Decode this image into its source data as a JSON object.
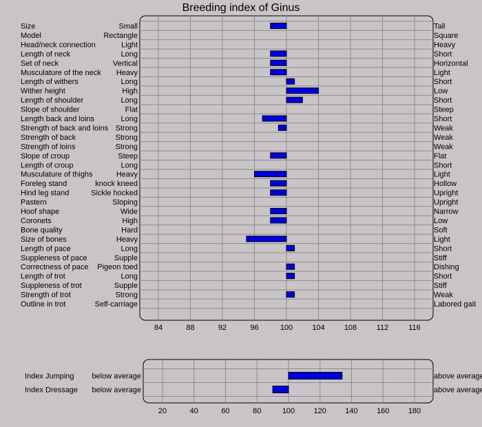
{
  "chart_data": [
    {
      "type": "bar",
      "orientation": "horizontal",
      "title": "Breeding index of Ginus",
      "baseline": 100,
      "xlim": [
        80,
        120
      ],
      "xticks": [
        84,
        88,
        92,
        96,
        100,
        104,
        108,
        112,
        116
      ],
      "grid": true,
      "bar_color": "#0000e0",
      "traits": [
        {
          "trait": "Size",
          "low": "Small",
          "high": "Tall",
          "value": 98
        },
        {
          "trait": "Model",
          "low": "Rectangle",
          "high": "Square",
          "value": null
        },
        {
          "trait": "Head/neck connection",
          "low": "Light",
          "high": "Heavy",
          "value": null
        },
        {
          "trait": "Length of neck",
          "low": "Long",
          "high": "Short",
          "value": 98
        },
        {
          "trait": "Set of neck",
          "low": "Vertical",
          "high": "Horizontal",
          "value": 98
        },
        {
          "trait": "Musculature of the neck",
          "low": "Heavy",
          "high": "Light",
          "value": 98
        },
        {
          "trait": "Length of withers",
          "low": "Long",
          "high": "Short",
          "value": 101
        },
        {
          "trait": "Wither height",
          "low": "High",
          "high": "Low",
          "value": 104
        },
        {
          "trait": "Length of shoulder",
          "low": "Long",
          "high": "Short",
          "value": 102
        },
        {
          "trait": "Slope of shoulder",
          "low": "Flat",
          "high": "Steep",
          "value": null
        },
        {
          "trait": "Length back and loins",
          "low": "Long",
          "high": "Short",
          "value": 97
        },
        {
          "trait": "Strength of back and loins",
          "low": "Strong",
          "high": "Weak",
          "value": 99
        },
        {
          "trait": "Strength of back",
          "low": "Strong",
          "high": "Weak",
          "value": null
        },
        {
          "trait": "Strength of loins",
          "low": "Strong",
          "high": "Weak",
          "value": null
        },
        {
          "trait": "Slope of croup",
          "low": "Steep",
          "high": "Flat",
          "value": 98
        },
        {
          "trait": "Length of croup",
          "low": "Long",
          "high": "Short",
          "value": null
        },
        {
          "trait": "Musculature of thighs",
          "low": "Heavy",
          "high": "Light",
          "value": 96
        },
        {
          "trait": "Foreleg stand",
          "low": "knock kneed",
          "high": "Hollow",
          "value": 98
        },
        {
          "trait": "Hind leg stand",
          "low": "Sickle hocked",
          "high": "Upright",
          "value": 98
        },
        {
          "trait": "Pastern",
          "low": "Sloping",
          "high": "Upright",
          "value": null
        },
        {
          "trait": "Hoof shape",
          "low": "Wide",
          "high": "Narrow",
          "value": 98
        },
        {
          "trait": "Coronets",
          "low": "High",
          "high": "Low",
          "value": 98
        },
        {
          "trait": "Bone quality",
          "low": "Hard",
          "high": "Soft",
          "value": null
        },
        {
          "trait": "Size of bones",
          "low": "Heavy",
          "high": "Light",
          "value": 95
        },
        {
          "trait": "Length of pace",
          "low": "Long",
          "high": "Short",
          "value": 101
        },
        {
          "trait": "Suppleness of pace",
          "low": "Supple",
          "high": "Stiff",
          "value": null
        },
        {
          "trait": "Correctness of pace",
          "low": "Pigeon toed",
          "high": "Dishing",
          "value": 101
        },
        {
          "trait": "Length of trot",
          "low": "Long",
          "high": "Short",
          "value": 101
        },
        {
          "trait": "Suppleness of trot",
          "low": "Supple",
          "high": "Stiff",
          "value": null
        },
        {
          "trait": "Strength of trot",
          "low": "Strong",
          "high": "Weak",
          "value": 101
        },
        {
          "trait": "Outline in trot",
          "low": "Self-carriage",
          "high": "Labored gait",
          "value": null
        }
      ]
    },
    {
      "type": "bar",
      "orientation": "horizontal",
      "baseline": 100,
      "xlim": [
        10,
        190
      ],
      "xticks": [
        20,
        40,
        60,
        80,
        100,
        120,
        140,
        160,
        180
      ],
      "grid": true,
      "bar_color": "#0000e0",
      "traits": [
        {
          "trait": "Index Jumping",
          "low": "below average",
          "high": "above average",
          "value": 134
        },
        {
          "trait": "Index Dressage",
          "low": "below average",
          "high": "above average",
          "value": 90
        }
      ]
    }
  ]
}
